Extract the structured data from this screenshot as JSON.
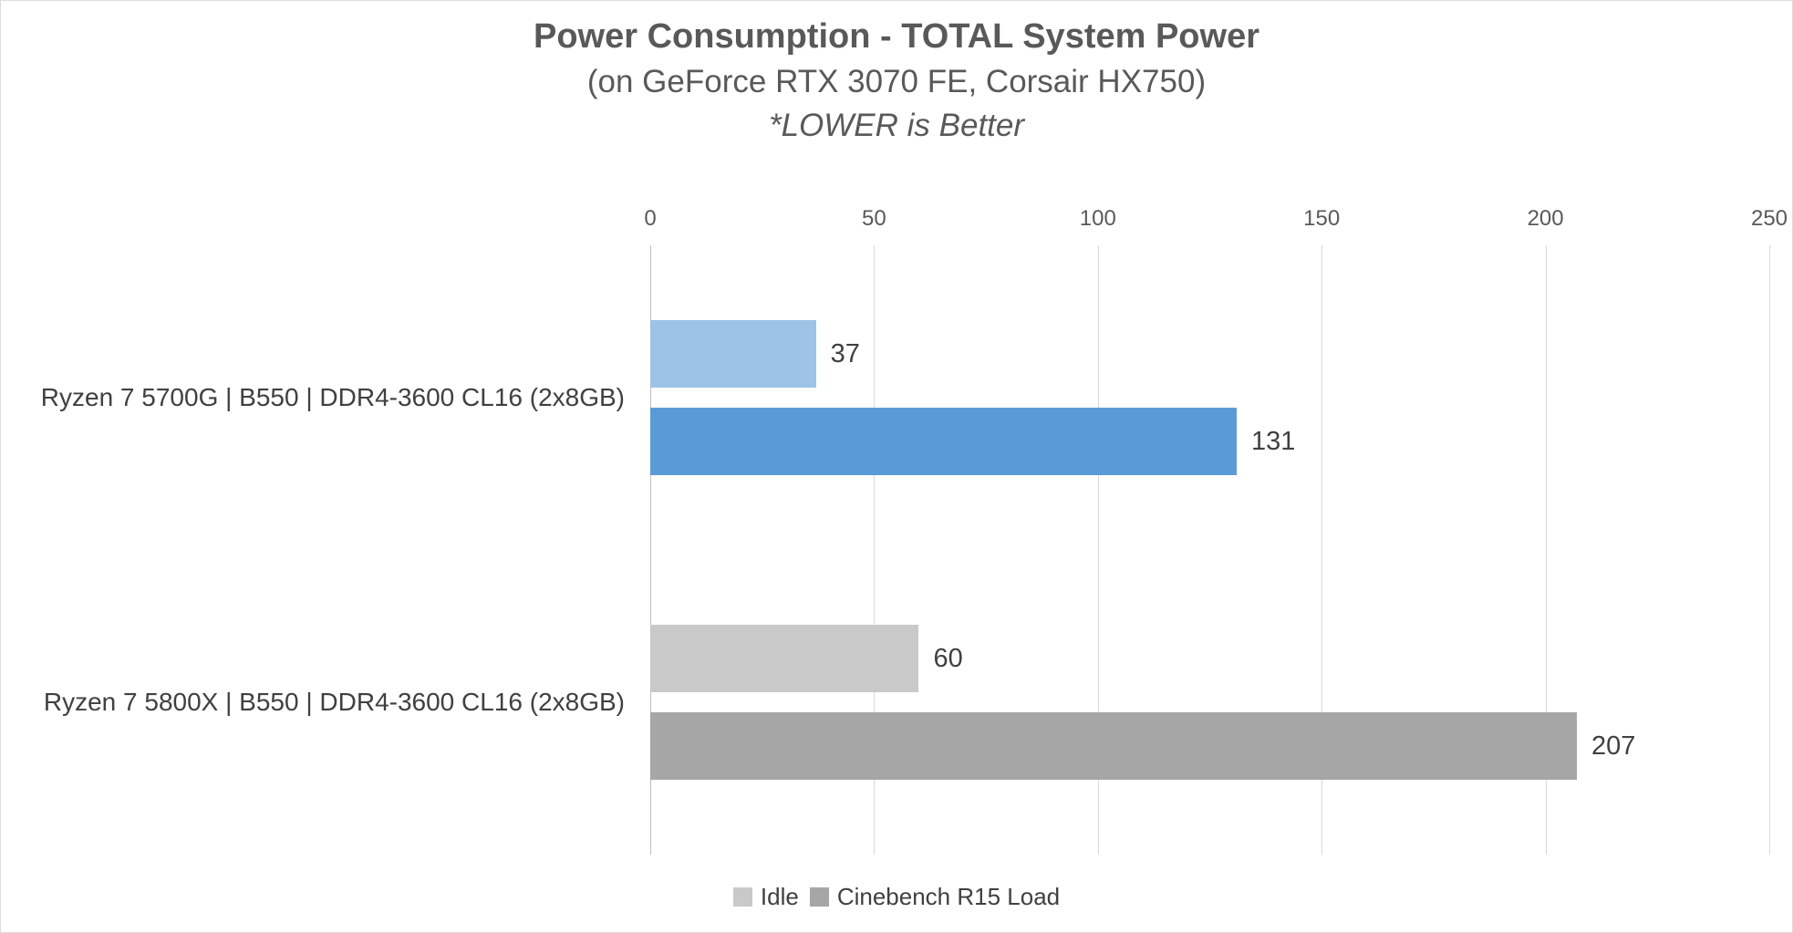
{
  "chart_data": {
    "type": "bar",
    "orientation": "horizontal",
    "title": "Power Consumption - TOTAL System Power",
    "subtitle": "(on GeForce RTX 3070 FE, Corsair HX750)",
    "note": "*LOWER is Better",
    "categories": [
      "Ryzen 7 5700G | B550 | DDR4-3600 CL16 (2x8GB)",
      "Ryzen 7 5800X | B550 | DDR4-3600 CL16 (2x8GB)"
    ],
    "series": [
      {
        "name": "Idle",
        "values": [
          37,
          60
        ],
        "colors": [
          "#9DC3E6",
          "#C9C9C9"
        ]
      },
      {
        "name": "Cinebench R15 Load",
        "values": [
          131,
          207
        ],
        "colors": [
          "#5B9BD5",
          "#A6A6A6"
        ]
      }
    ],
    "value_labels": [
      [
        "37",
        "60"
      ],
      [
        "131",
        "207"
      ]
    ],
    "xlim": [
      0,
      250
    ],
    "xticks": [
      "0",
      "50",
      "100",
      "150",
      "200",
      "250"
    ],
    "grid": true,
    "legend": {
      "position": "bottom",
      "items": [
        {
          "label": "Idle",
          "swatch_color": "#C9C9C9"
        },
        {
          "label": "Cinebench R15 Load",
          "swatch_color": "#A6A6A6"
        }
      ]
    },
    "colors": {
      "gridline": "#D9D9D9",
      "zero_axis": "#BFBFBF",
      "title_text": "#595959",
      "axis_text": "#595959",
      "label_text": "#404040"
    }
  }
}
